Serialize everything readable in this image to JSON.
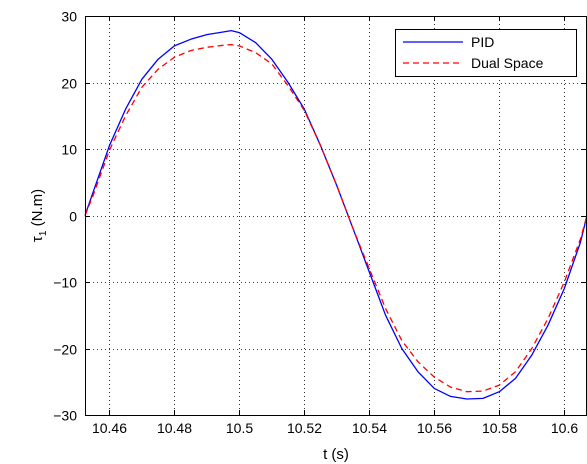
{
  "chart_data": {
    "type": "line",
    "xlabel": "t (s)",
    "ylabel_main": "τ",
    "ylabel_sub": "1",
    "ylabel_unit": " (N.m)",
    "xlim": [
      10.4525,
      10.607
    ],
    "ylim": [
      -30,
      30
    ],
    "x_ticks": [
      10.46,
      10.48,
      10.5,
      10.52,
      10.54,
      10.56,
      10.58,
      10.6
    ],
    "x_tick_labels": [
      "10.46",
      "10.48",
      "10.5",
      "10.52",
      "10.54",
      "10.56",
      "10.58",
      "10.6"
    ],
    "y_ticks": [
      -30,
      -20,
      -10,
      0,
      10,
      20,
      30
    ],
    "y_tick_labels": [
      "−30",
      "−20",
      "−10",
      "0",
      "10",
      "20",
      "30"
    ],
    "grid": true,
    "legend_position": "top-right",
    "series": [
      {
        "name": "PID",
        "color": "#0000ff",
        "style": "solid",
        "x": [
          10.4525,
          10.455,
          10.46,
          10.465,
          10.47,
          10.475,
          10.48,
          10.485,
          10.49,
          10.495,
          10.4975,
          10.5,
          10.505,
          10.51,
          10.515,
          10.52,
          10.525,
          10.53,
          10.535,
          10.54,
          10.545,
          10.55,
          10.555,
          10.56,
          10.565,
          10.57,
          10.575,
          10.58,
          10.585,
          10.59,
          10.595,
          10.6,
          10.605,
          10.607
        ],
        "y": [
          0.0,
          3.5,
          10.5,
          16.0,
          20.5,
          23.5,
          25.5,
          26.5,
          27.2,
          27.6,
          27.8,
          27.5,
          26.0,
          23.5,
          20.0,
          16.0,
          10.5,
          4.5,
          -2.0,
          -8.5,
          -15.0,
          -20.0,
          -23.5,
          -26.0,
          -27.2,
          -27.6,
          -27.5,
          -26.5,
          -24.5,
          -21.0,
          -16.5,
          -11.0,
          -4.0,
          0.0
        ]
      },
      {
        "name": "Dual Space",
        "color": "#ff0000",
        "style": "dashed",
        "x": [
          10.4525,
          10.455,
          10.46,
          10.465,
          10.47,
          10.475,
          10.48,
          10.485,
          10.49,
          10.495,
          10.4975,
          10.5,
          10.505,
          10.51,
          10.515,
          10.52,
          10.525,
          10.53,
          10.535,
          10.54,
          10.545,
          10.55,
          10.555,
          10.56,
          10.565,
          10.57,
          10.575,
          10.58,
          10.585,
          10.59,
          10.595,
          10.6,
          10.605,
          10.607
        ],
        "y": [
          0.0,
          3.0,
          9.8,
          15.0,
          19.3,
          22.0,
          23.8,
          24.8,
          25.3,
          25.6,
          25.7,
          25.5,
          24.5,
          22.8,
          19.5,
          15.8,
          10.5,
          4.5,
          -2.0,
          -8.0,
          -14.0,
          -18.8,
          -22.0,
          -24.3,
          -25.8,
          -26.5,
          -26.4,
          -25.5,
          -23.5,
          -20.0,
          -15.5,
          -10.0,
          -3.5,
          0.0
        ]
      }
    ]
  }
}
